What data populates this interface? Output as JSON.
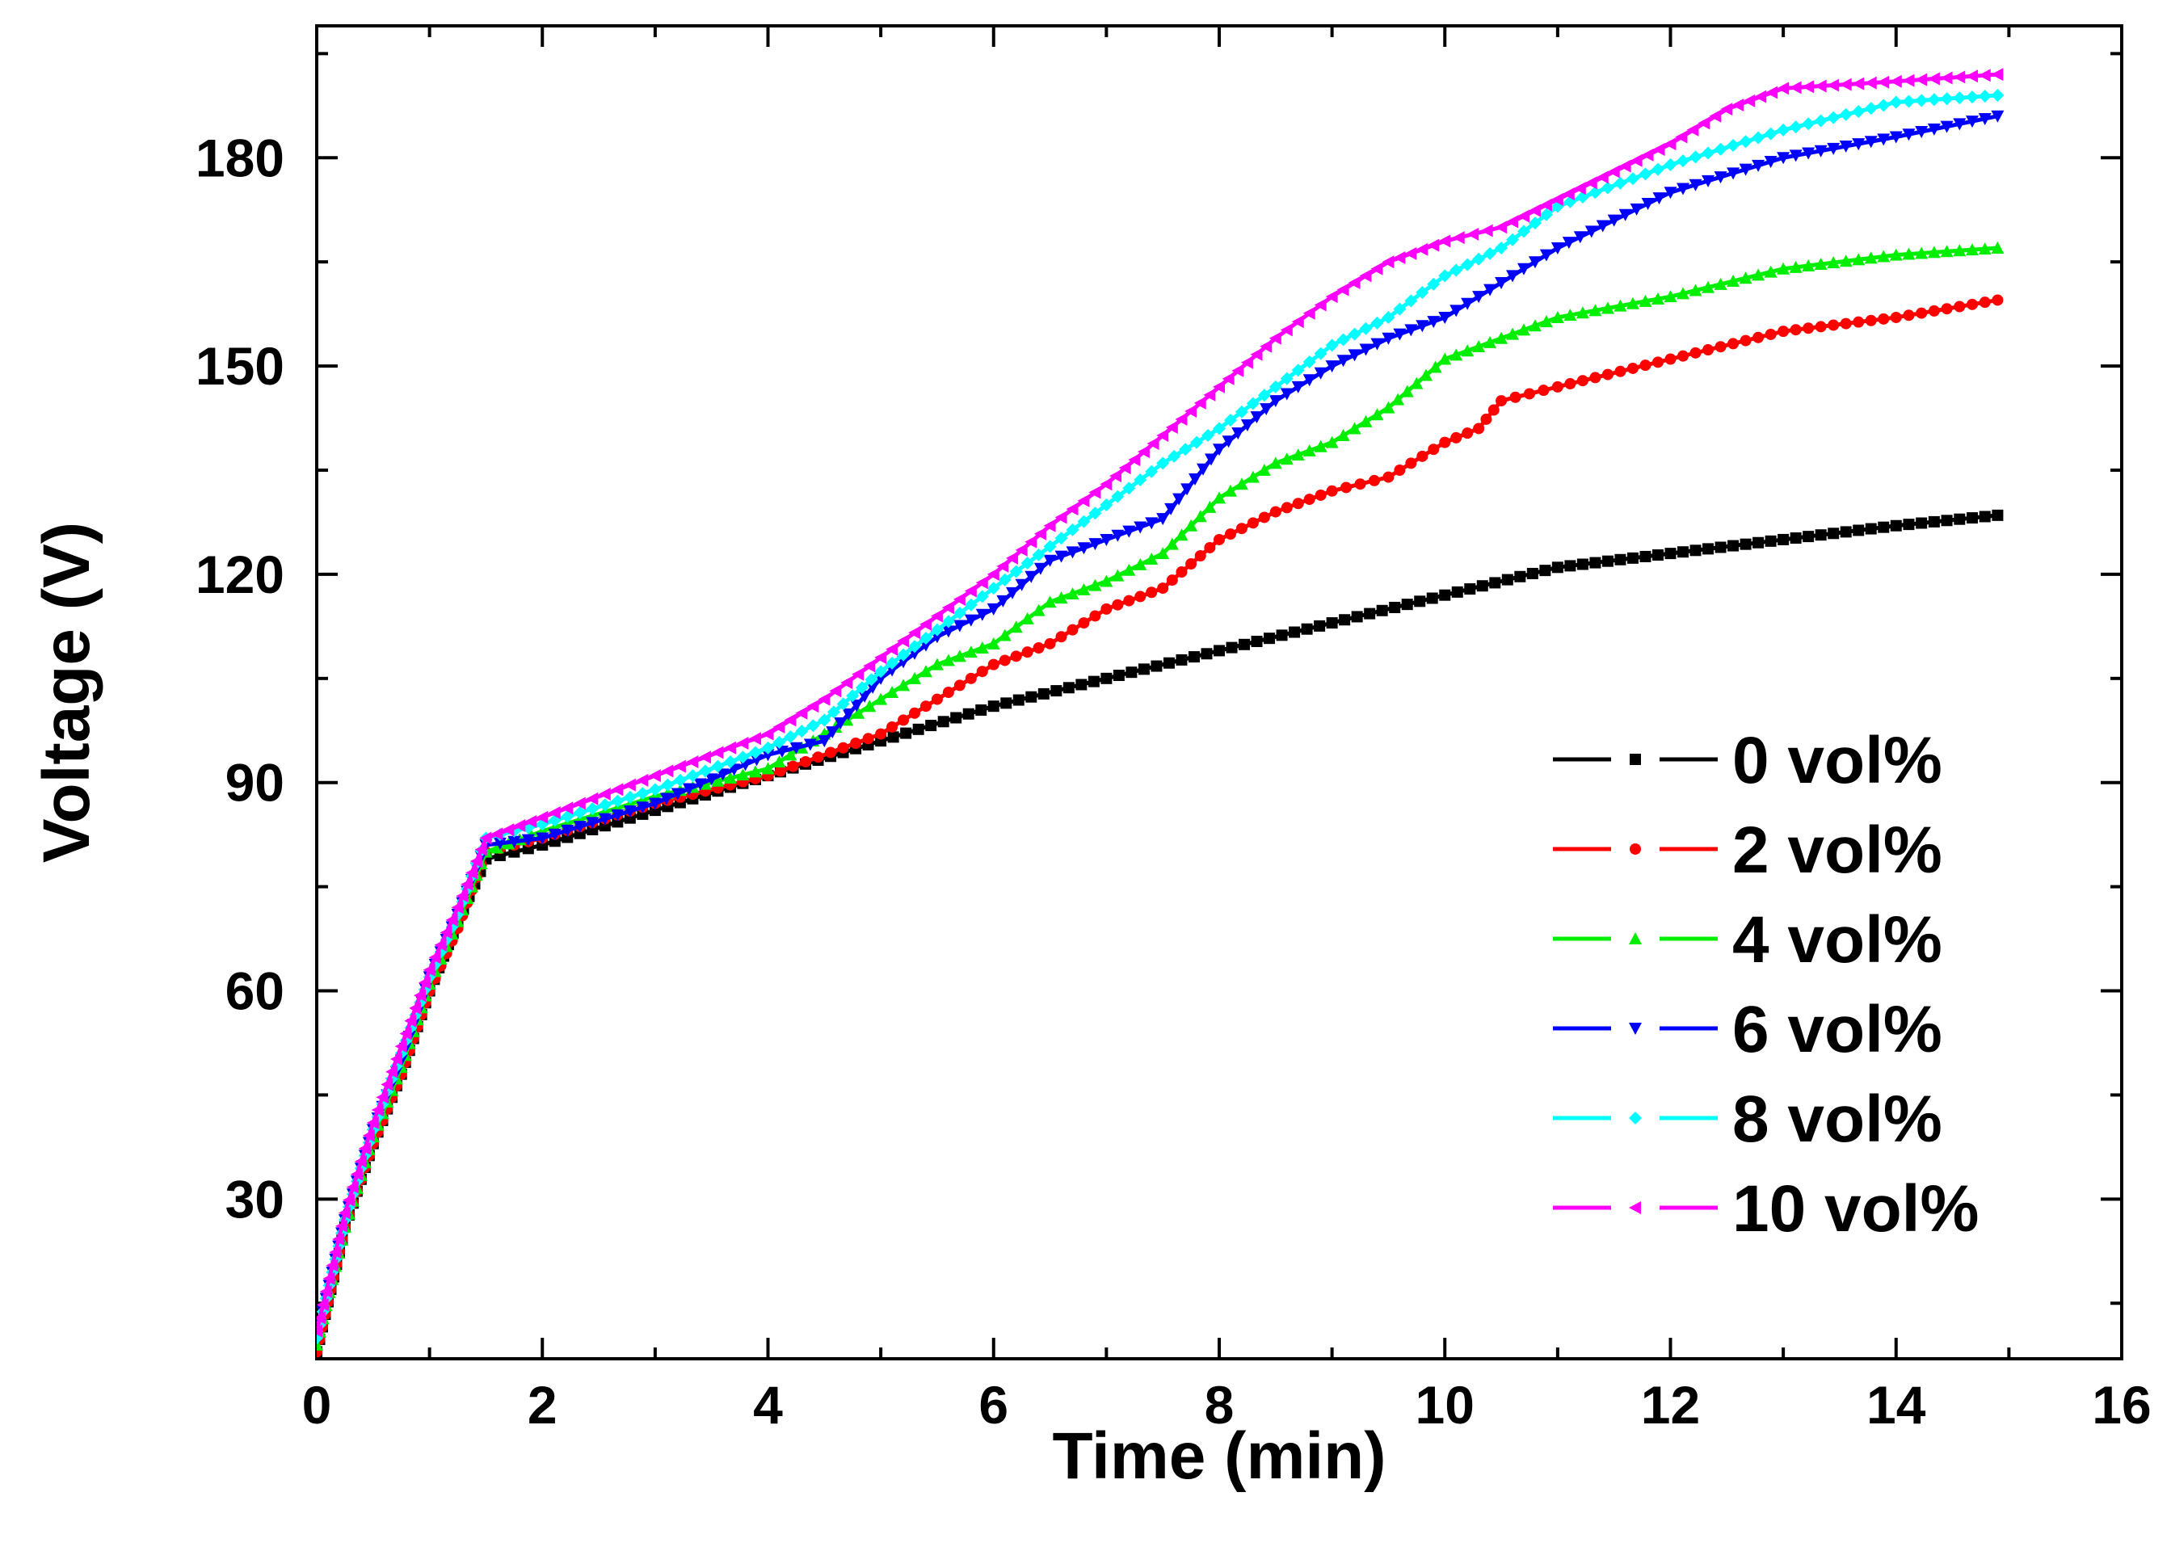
{
  "chart_data": {
    "type": "line",
    "title": "",
    "xlabel": "Time (min)",
    "ylabel": "Voltage (V)",
    "xlim": [
      0,
      16
    ],
    "ylim": [
      7,
      199
    ],
    "xticks": [
      0,
      2,
      4,
      6,
      8,
      10,
      12,
      14,
      16
    ],
    "yticks": [
      30,
      60,
      90,
      120,
      150,
      180
    ],
    "legend_position": "center-right",
    "series": [
      {
        "name": "0 vol%",
        "color": "#000000",
        "marker": "square",
        "x": [
          0,
          0.25,
          0.5,
          0.75,
          1.0,
          1.25,
          1.5,
          2,
          3,
          4,
          5,
          6,
          7,
          8,
          9,
          10,
          11,
          12,
          13,
          14,
          14.9
        ],
        "y": [
          8,
          26,
          38,
          48,
          60,
          70,
          79,
          81,
          86,
          91,
          96,
          101,
          105,
          109,
          113,
          117,
          121,
          123,
          125,
          127,
          128.5
        ]
      },
      {
        "name": "2 vol%",
        "color": "#ff0000",
        "marker": "circle",
        "x": [
          0,
          0.25,
          0.5,
          0.75,
          1.0,
          1.25,
          1.5,
          2,
          3,
          4,
          5,
          5.5,
          6,
          6.5,
          7,
          7.5,
          8,
          8.5,
          9,
          9.5,
          10,
          10.3,
          10.5,
          11,
          12,
          13,
          14,
          14.9
        ],
        "y": [
          8,
          26,
          38,
          48,
          60,
          69,
          80,
          82,
          87,
          91,
          97,
          102,
          107,
          110,
          115,
          118,
          125,
          129,
          132,
          134,
          139,
          141,
          145,
          147,
          151,
          155,
          157,
          159.5
        ]
      },
      {
        "name": "4 vol%",
        "color": "#00ee00",
        "marker": "triangle-up",
        "x": [
          0,
          0.25,
          0.5,
          0.75,
          1.0,
          1.25,
          1.5,
          2,
          3,
          4,
          4.5,
          5,
          5.5,
          6,
          6.5,
          7,
          7.5,
          8,
          8.5,
          9,
          9.5,
          10,
          10.5,
          11,
          12,
          13,
          14,
          14.9
        ],
        "y": [
          9,
          26,
          39,
          49,
          61,
          70,
          80,
          83,
          88,
          92,
          97,
          102,
          107,
          110,
          116,
          119,
          123,
          131,
          136,
          139,
          144,
          151,
          154,
          157,
          160,
          164,
          166,
          167
        ]
      },
      {
        "name": "6 vol%",
        "color": "#0000ff",
        "marker": "triangle-down",
        "x": [
          0,
          0.25,
          0.5,
          0.75,
          1.0,
          1.25,
          1.5,
          2,
          3,
          4,
          4.5,
          5,
          5.5,
          6,
          6.5,
          7,
          7.5,
          8,
          8.5,
          9,
          9.5,
          10,
          10.5,
          11,
          11.5,
          12,
          13,
          14,
          14.9
        ],
        "y": [
          10,
          27,
          40,
          50,
          62,
          71,
          81,
          82,
          87,
          94,
          96,
          105,
          111,
          115,
          122,
          125,
          128,
          138,
          145,
          150,
          154,
          157,
          162,
          167,
          171,
          175,
          180,
          183,
          186
        ]
      },
      {
        "name": "8 vol%",
        "color": "#00ffff",
        "marker": "diamond",
        "x": [
          0,
          0.25,
          0.5,
          0.75,
          1.0,
          1.25,
          1.5,
          2,
          3,
          4,
          4.5,
          5,
          5.5,
          6,
          6.5,
          7,
          7.5,
          8,
          8.5,
          9,
          9.5,
          10,
          10.5,
          11,
          12,
          13,
          14,
          14.9
        ],
        "y": [
          10,
          27,
          40,
          51,
          62,
          71,
          82,
          84,
          89,
          95,
          99,
          106,
          112,
          118,
          124,
          130,
          136,
          141,
          147,
          153,
          157,
          163,
          167,
          173,
          179,
          184,
          188,
          189
        ]
      },
      {
        "name": "10 vol%",
        "color": "#ff00ff",
        "marker": "triangle-left",
        "x": [
          0,
          0.25,
          0.5,
          0.75,
          1.0,
          1.25,
          1.5,
          2,
          3,
          4,
          4.5,
          5,
          5.5,
          6,
          6.5,
          7,
          7.5,
          8,
          8.5,
          9,
          9.5,
          10,
          10.5,
          11,
          11.5,
          12,
          12.5,
          13,
          14,
          14.9
        ],
        "y": [
          11,
          28,
          41,
          52,
          63,
          72,
          82,
          85,
          91,
          97,
          102,
          108,
          114,
          120,
          127,
          133,
          140,
          147,
          154,
          160,
          165,
          168,
          170,
          174,
          178,
          182,
          187,
          190,
          191,
          192
        ]
      }
    ]
  }
}
